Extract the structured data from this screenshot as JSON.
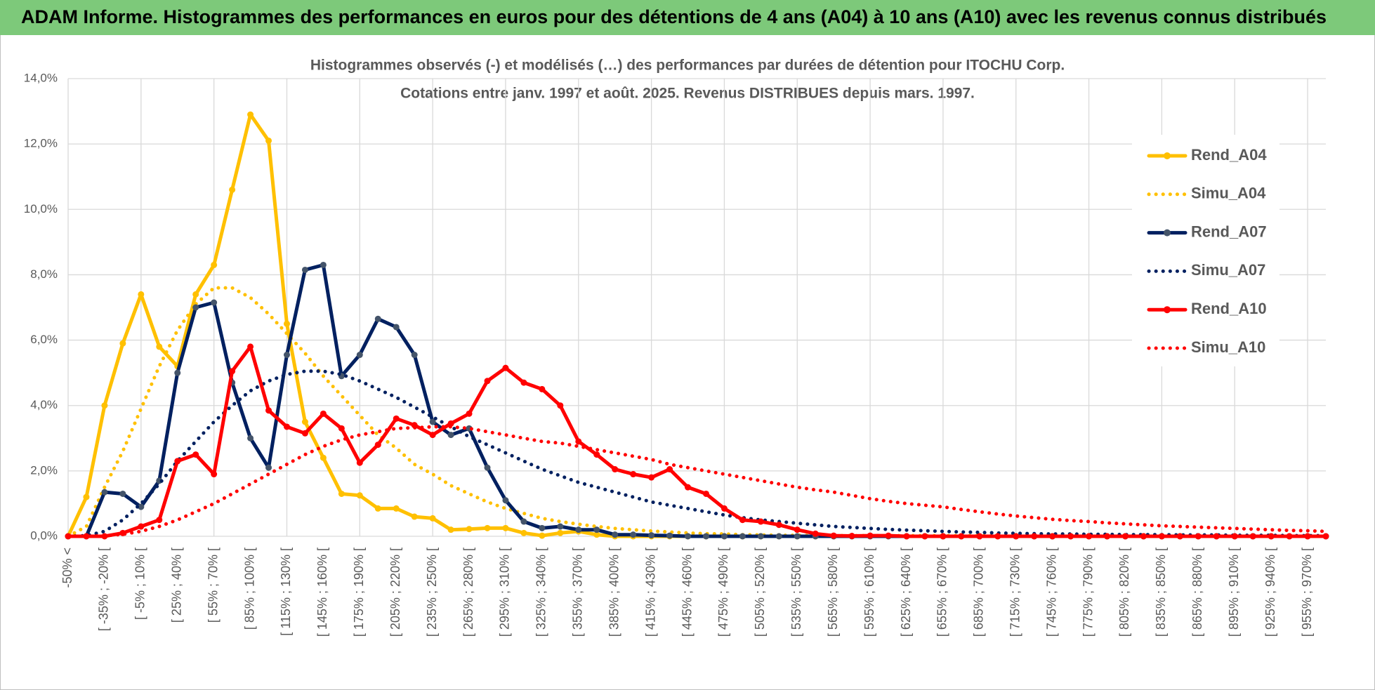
{
  "header": {
    "title": "ADAM Informe. Histogrammes des performances en euros pour des détentions de 4 ans (A04) à 10 ans (A10) avec les revenus connus distribués"
  },
  "chart_data": {
    "type": "line",
    "title": "Histogrammes observés (-) et modélisés (…) des performances par durées de détention pour ITOCHU Corp.",
    "subtitle": "Cotations entre janv. 1997 et août. 2025. Revenus DISTRIBUES depuis mars. 1997.",
    "categories": [
      "-50% <",
      null,
      "[ -35% ; -20% [",
      null,
      "[ -5% ; 10% [",
      null,
      "[ 25% ; 40% [",
      null,
      "[ 55% ; 70% [",
      null,
      "[ 85% ; 100% [",
      null,
      "[ 115% ; 130% [",
      null,
      "[ 145% ; 160% [",
      null,
      "[ 175% ; 190% [",
      null,
      "[ 205% ; 220% [",
      null,
      "[ 235% ; 250% [",
      null,
      "[ 265% ; 280% [",
      null,
      "[ 295% ; 310% [",
      null,
      "[ 325% ; 340% [",
      null,
      "[ 355% ; 370% [",
      null,
      "[ 385% ; 400% [",
      null,
      "[ 415% ; 430% [",
      null,
      "[ 445% ; 460% [",
      null,
      "[ 475% ; 490% [",
      null,
      "[ 505% ; 520% [",
      null,
      "[ 535% ; 550% [",
      null,
      "[ 565% ; 580% [",
      null,
      "[ 595% ; 610% [",
      null,
      "[ 625% ; 640% [",
      null,
      "[ 655% ; 670% [",
      null,
      "[ 685% ; 700% [",
      null,
      "[ 715% ; 730% [",
      null,
      "[ 745% ; 760% [",
      null,
      "[ 775% ; 790% [",
      null,
      "[ 805% ; 820% [",
      null,
      "[ 835% ; 850% [",
      null,
      "[ 865% ; 880% [",
      null,
      "[ 895% ; 910% [",
      null,
      "[ 925% ; 940% [",
      null,
      "[ 955% ; 970% [",
      null
    ],
    "series": [
      {
        "name": "Rend_A04",
        "color": "#FFC000",
        "marker": "circle",
        "values": [
          0,
          1.2,
          4.0,
          5.9,
          7.4,
          5.8,
          5.2,
          7.4,
          8.3,
          10.6,
          12.9,
          12.1,
          6.5,
          3.5,
          2.4,
          1.3,
          1.25,
          0.85,
          0.85,
          0.6,
          0.55,
          0.2,
          0.22,
          0.25,
          0.25,
          0.1,
          0.02,
          0.1,
          0.15,
          0.05,
          0,
          0,
          0,
          0,
          0,
          0,
          0,
          0,
          0,
          0,
          0,
          0,
          0,
          0,
          0,
          0,
          0,
          0,
          0,
          0,
          0,
          0,
          0,
          0,
          0,
          0,
          0,
          0,
          0,
          0,
          0,
          0,
          0,
          0,
          0,
          0,
          0,
          0,
          0,
          0
        ]
      },
      {
        "name": "Simu_A04",
        "color": "#FFC000",
        "dash": "dotted",
        "values": [
          0,
          0.3,
          1.5,
          2.6,
          3.9,
          5.2,
          6.3,
          7.1,
          7.6,
          7.6,
          7.3,
          6.8,
          6.2,
          5.6,
          4.9,
          4.3,
          3.7,
          3.1,
          2.7,
          2.2,
          1.9,
          1.55,
          1.3,
          1.05,
          0.85,
          0.7,
          0.55,
          0.45,
          0.37,
          0.3,
          0.24,
          0.2,
          0.16,
          0.13,
          0.1,
          0.08,
          0.07,
          0.05,
          0.04,
          0.03,
          0.03,
          0.02,
          0.02,
          0.02,
          0.02,
          0.02,
          0.02,
          0.02,
          0.02,
          0.02,
          0.02,
          0.01,
          0.01,
          0.01,
          0.01,
          0.01,
          0.01,
          0.01,
          0.01,
          0.01,
          0.01,
          0,
          0,
          0,
          0,
          0,
          0,
          0,
          0,
          0
        ]
      },
      {
        "name": "Rend_A07",
        "color": "#002060",
        "marker": "circle",
        "marker_color": "#44546A",
        "values": [
          0,
          0,
          1.35,
          1.3,
          0.9,
          1.7,
          5.0,
          7.0,
          7.15,
          4.7,
          3.0,
          2.1,
          5.55,
          8.15,
          8.3,
          4.9,
          5.55,
          6.65,
          6.4,
          5.55,
          3.5,
          3.1,
          3.3,
          2.1,
          1.1,
          0.45,
          0.25,
          0.3,
          0.2,
          0.2,
          0.05,
          0.05,
          0.03,
          0.02,
          0,
          0,
          0,
          0,
          0,
          0,
          0,
          0,
          0,
          0,
          0,
          0,
          0,
          0,
          0,
          0,
          0,
          0,
          0,
          0,
          0,
          0,
          0,
          0,
          0,
          0,
          0,
          0,
          0,
          0,
          0,
          0,
          0,
          0,
          0,
          0
        ]
      },
      {
        "name": "Simu_A07",
        "color": "#002060",
        "dash": "dotted",
        "values": [
          0,
          0.02,
          0.15,
          0.5,
          1.0,
          1.6,
          2.3,
          2.9,
          3.5,
          4.0,
          4.45,
          4.75,
          4.95,
          5.05,
          5.05,
          4.95,
          4.75,
          4.5,
          4.25,
          3.95,
          3.65,
          3.35,
          3.05,
          2.8,
          2.55,
          2.3,
          2.05,
          1.85,
          1.65,
          1.5,
          1.35,
          1.2,
          1.05,
          0.95,
          0.85,
          0.75,
          0.65,
          0.57,
          0.5,
          0.45,
          0.4,
          0.35,
          0.3,
          0.27,
          0.24,
          0.21,
          0.19,
          0.17,
          0.15,
          0.13,
          0.12,
          0.1,
          0.09,
          0.08,
          0.07,
          0.07,
          0.06,
          0.06,
          0.05,
          0.05,
          0.05,
          0.04,
          0.04,
          0.04,
          0.03,
          0.03,
          0.03,
          0.02,
          0.02,
          0.02
        ]
      },
      {
        "name": "Rend_A10",
        "color": "#FF0000",
        "marker": "circle",
        "values": [
          0,
          0,
          0,
          0.1,
          0.3,
          0.5,
          2.3,
          2.5,
          1.9,
          5.05,
          5.8,
          3.85,
          3.35,
          3.15,
          3.75,
          3.3,
          2.25,
          2.8,
          3.6,
          3.4,
          3.1,
          3.45,
          3.75,
          4.75,
          5.15,
          4.7,
          4.5,
          4.0,
          2.9,
          2.5,
          2.05,
          1.9,
          1.8,
          2.05,
          1.5,
          1.3,
          0.85,
          0.5,
          0.45,
          0.35,
          0.2,
          0.08,
          0.02,
          0.01,
          0.02,
          0.02,
          0,
          0,
          0,
          0,
          0,
          0,
          0,
          0,
          0,
          0,
          0,
          0,
          0,
          0,
          0,
          0,
          0,
          0,
          0,
          0,
          0,
          0,
          0,
          0
        ]
      },
      {
        "name": "Simu_A10",
        "color": "#FF0000",
        "dash": "dotted",
        "values": [
          0,
          0,
          0.02,
          0.06,
          0.15,
          0.3,
          0.5,
          0.75,
          1.0,
          1.3,
          1.6,
          1.9,
          2.2,
          2.5,
          2.75,
          2.95,
          3.1,
          3.2,
          3.3,
          3.32,
          3.35,
          3.35,
          3.3,
          3.2,
          3.1,
          3.0,
          2.9,
          2.85,
          2.75,
          2.65,
          2.55,
          2.45,
          2.35,
          2.2,
          2.1,
          2.0,
          1.9,
          1.8,
          1.7,
          1.6,
          1.5,
          1.42,
          1.35,
          1.25,
          1.15,
          1.07,
          1.0,
          0.95,
          0.9,
          0.82,
          0.75,
          0.68,
          0.62,
          0.57,
          0.52,
          0.48,
          0.45,
          0.41,
          0.38,
          0.35,
          0.32,
          0.3,
          0.28,
          0.26,
          0.24,
          0.22,
          0.2,
          0.18,
          0.17,
          0.15
        ]
      }
    ],
    "ylim": [
      0,
      14
    ],
    "yticks": [
      {
        "value": 0,
        "label": "0,0%"
      },
      {
        "value": 2,
        "label": "2,0%"
      },
      {
        "value": 4,
        "label": "4,0%"
      },
      {
        "value": 6,
        "label": "6,0%"
      },
      {
        "value": 8,
        "label": "8,0%"
      },
      {
        "value": 10,
        "label": "10,0%"
      },
      {
        "value": 12,
        "label": "12,0%"
      },
      {
        "value": 14,
        "label": "14,0%"
      }
    ],
    "grid": true,
    "legend": "right"
  }
}
